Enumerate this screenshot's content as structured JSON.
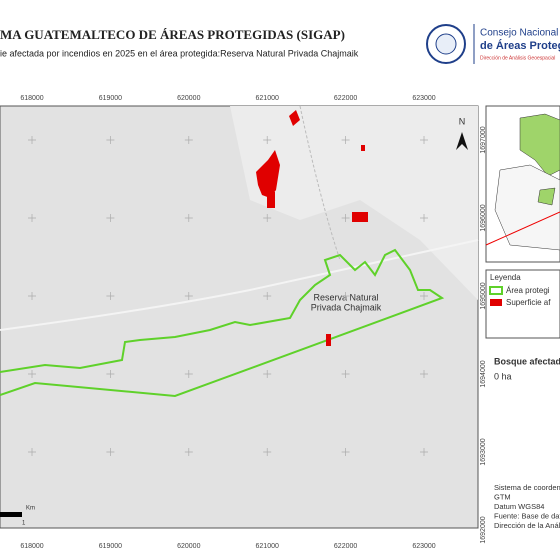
{
  "header": {
    "title": "MA GUATEMALTECO DE ÁREAS PROTEGIDAS (SIGAP)",
    "subtitle": "ie afectada por incendios en 2025 en el área protegida:Reserva Natural Privada Chajmaik",
    "logo_line1": "Consejo Nacional",
    "logo_line2": "de Áreas Protegidas",
    "logo_line3": "Dirección de Análisis Geoespacial"
  },
  "map": {
    "xticks": [
      618000,
      619000,
      620000,
      621000,
      622000,
      623000
    ],
    "yticks": [
      1697000,
      1696000,
      1695000,
      1694000,
      1693000,
      1692000
    ],
    "north": "N",
    "area_label": "Reserva Natural Privada Chajmaik",
    "scale_unit": "Km",
    "scale_value": 1
  },
  "legend": {
    "title": "Leyenda",
    "items": [
      "Área protegi",
      "Superficie af"
    ]
  },
  "stats": {
    "label": "Bosque afectado",
    "value": "0 ha"
  },
  "info": [
    "Sistema de coordena",
    "GTM",
    "Datum WGS84",
    "Fuente: Base de dat",
    "Dirección de la Análi"
  ]
}
